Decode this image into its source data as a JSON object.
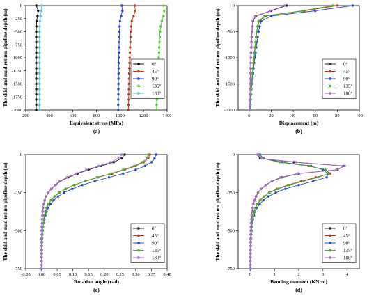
{
  "colors": {
    "0°": "#2b2b2b",
    "45°": "#b5402a",
    "90°": "#2a48c8",
    "135°": "#4fae32",
    "180°": "#a870c8",
    "stress_0°": "#111111",
    "stress_180°": "#59c3e3",
    "stress_135°": "#5cc92d"
  },
  "chart_data": [
    {
      "id": "a",
      "type": "line",
      "caption": "(a)",
      "xlabel": "Equivalent stress (MPa)",
      "ylabel": "The skid and mud return pipeline depth (m)",
      "xlim": [
        200,
        1400
      ],
      "ylim": [
        -2000,
        0
      ],
      "xticks": [
        200,
        400,
        600,
        800,
        1000,
        1200,
        1400
      ],
      "yticks": [
        0,
        -250,
        -500,
        -750,
        -1000,
        -1250,
        -1500,
        -1750,
        -2000
      ],
      "legend": "inside-right",
      "y": [
        0,
        -100,
        -200,
        -300,
        -400,
        -500,
        -600,
        -700,
        -800,
        -900,
        -1000,
        -1100,
        -1200,
        -1300,
        -1400,
        -1500,
        -1600,
        -1700,
        -1800,
        -1900,
        -2000
      ],
      "series": [
        {
          "name": "0°",
          "values": [
            290,
            305,
            300,
            292,
            290,
            289,
            289,
            289,
            289,
            289,
            289,
            289,
            289,
            289,
            289,
            289,
            289,
            289,
            289,
            289,
            289
          ]
        },
        {
          "name": "45°",
          "values": [
            1125,
            1130,
            1115,
            1100,
            1095,
            1092,
            1090,
            1088,
            1086,
            1084,
            1082,
            1080,
            1079,
            1078,
            1077,
            1076,
            1075,
            1074,
            1073,
            1072,
            1071
          ]
        },
        {
          "name": "90°",
          "values": [
            1015,
            1020,
            1010,
            1000,
            997,
            995,
            994,
            993,
            992,
            991,
            990,
            989,
            988,
            988,
            987,
            987,
            986,
            986,
            985,
            985,
            985
          ]
        },
        {
          "name": "135°",
          "values": [
            1370,
            1375,
            1370,
            1355,
            1345,
            1340,
            1337,
            1335,
            1333,
            1331,
            1329,
            1327,
            1325,
            1323,
            1321,
            1319,
            1317,
            1315,
            1313,
            1311,
            1310
          ]
        },
        {
          "name": "180°",
          "values": [
            335,
            330,
            325,
            320,
            318,
            317,
            317,
            317,
            317,
            317,
            317,
            317,
            317,
            317,
            317,
            317,
            317,
            317,
            317,
            317,
            317
          ]
        }
      ]
    },
    {
      "id": "b",
      "type": "line",
      "caption": "(b)",
      "xlabel": "Displacement (m)",
      "ylabel": "The skid and mud return pipeline depth (m)",
      "xlim": [
        -10,
        100
      ],
      "ylim": [
        -2000,
        0
      ],
      "xticks": [
        0,
        20,
        40,
        60,
        80,
        100
      ],
      "yticks": [
        0,
        -500,
        -1000,
        -1500,
        -2000
      ],
      "legend": "inside-right",
      "y": [
        0,
        -100,
        -200,
        -300,
        -400,
        -500,
        -600,
        -700,
        -800,
        -900,
        -1000,
        -1100,
        -1200,
        -1300,
        -1400,
        -1500,
        -1600,
        -1700,
        -1800,
        -1900,
        -2000
      ],
      "series": [
        {
          "name": "0°",
          "values": [
            34,
            20,
            6,
            3.5,
            3,
            2.6,
            2.3,
            2.1,
            1.9,
            1.7,
            1.5,
            1.4,
            1.3,
            1.2,
            1.1,
            1.0,
            0.9,
            0.8,
            0.7,
            0.6,
            0.5
          ]
        },
        {
          "name": "45°",
          "values": [
            80,
            50,
            15,
            9,
            8,
            7,
            6.5,
            6,
            5.5,
            5,
            4.5,
            4,
            3.5,
            3,
            2.5,
            2,
            1.8,
            1.5,
            1.2,
            1.0,
            0.8
          ]
        },
        {
          "name": "90°",
          "values": [
            94,
            60,
            20,
            11,
            9.5,
            8.5,
            7.8,
            7,
            6.4,
            5.8,
            5.2,
            4.6,
            4,
            3.5,
            3,
            2.5,
            2,
            1.7,
            1.4,
            1.1,
            0.9
          ]
        },
        {
          "name": "135°",
          "values": [
            76,
            48,
            14,
            8.5,
            7.5,
            6.8,
            6.2,
            5.7,
            5.2,
            4.7,
            4.2,
            3.7,
            3.3,
            2.9,
            2.5,
            2.1,
            1.8,
            1.5,
            1.2,
            1.0,
            0.8
          ]
        },
        {
          "name": "180°",
          "values": [
            32,
            19,
            5.5,
            3.2,
            2.8,
            2.4,
            2.1,
            1.9,
            1.7,
            1.5,
            1.4,
            1.3,
            1.2,
            1.1,
            1.0,
            0.9,
            0.8,
            0.7,
            0.6,
            0.5,
            0.4
          ]
        }
      ]
    },
    {
      "id": "c",
      "type": "line",
      "caption": "(c)",
      "xlabel": "Rotation angle (rad)",
      "ylabel": "The skid and mud return pipeline depth (m)",
      "xlim": [
        -0.05,
        0.4
      ],
      "ylim": [
        -750,
        0
      ],
      "xticks": [
        -0.05,
        0.0,
        0.05,
        0.1,
        0.15,
        0.2,
        0.25,
        0.3,
        0.35,
        0.4
      ],
      "xtick_labels": [
        "-0.05",
        "0.00",
        "0.05",
        "0.10",
        "0.15",
        "0.20",
        "0.25",
        "0.30",
        "0.35",
        "0.40"
      ],
      "yticks": [
        0,
        -250,
        -500,
        -750
      ],
      "legend": "inside-right",
      "y": [
        0,
        -25,
        -50,
        -75,
        -100,
        -125,
        -150,
        -175,
        -200,
        -225,
        -250,
        -275,
        -300,
        -325,
        -350,
        -375,
        -400,
        -425,
        -450,
        -475,
        -500,
        -525,
        -550,
        -575,
        -600,
        -625,
        -650,
        -675,
        -700,
        -725,
        -750
      ],
      "series": [
        {
          "name": "0°",
          "values": [
            0.265,
            0.255,
            0.23,
            0.19,
            0.15,
            0.115,
            0.085,
            0.06,
            0.045,
            0.032,
            0.022,
            0.015,
            0.01,
            0.007,
            0.005,
            0.004,
            0.003,
            0.002,
            0.002,
            0.001,
            0.001,
            0.001,
            0.0,
            0.0,
            0.0,
            0.0,
            0.0,
            0.0,
            0.0,
            0.0,
            0.0
          ]
        },
        {
          "name": "45°",
          "values": [
            0.345,
            0.34,
            0.325,
            0.3,
            0.265,
            0.225,
            0.18,
            0.14,
            0.105,
            0.078,
            0.057,
            0.042,
            0.031,
            0.023,
            0.017,
            0.013,
            0.01,
            0.008,
            0.006,
            0.005,
            0.004,
            0.003,
            0.002,
            0.002,
            0.001,
            0.001,
            0.001,
            0.0,
            0.0,
            0.0,
            0.0
          ]
        },
        {
          "name": "90°",
          "values": [
            0.365,
            0.36,
            0.35,
            0.33,
            0.3,
            0.26,
            0.215,
            0.17,
            0.13,
            0.098,
            0.072,
            0.053,
            0.039,
            0.029,
            0.021,
            0.016,
            0.012,
            0.009,
            0.007,
            0.005,
            0.004,
            0.003,
            0.002,
            0.002,
            0.001,
            0.001,
            0.001,
            0.0,
            0.0,
            0.0,
            0.0
          ]
        },
        {
          "name": "135°",
          "values": [
            0.34,
            0.335,
            0.32,
            0.295,
            0.26,
            0.22,
            0.177,
            0.138,
            0.103,
            0.077,
            0.056,
            0.041,
            0.03,
            0.022,
            0.016,
            0.012,
            0.009,
            0.007,
            0.006,
            0.005,
            0.004,
            0.003,
            0.002,
            0.002,
            0.001,
            0.001,
            0.001,
            0.0,
            0.0,
            0.0,
            0.0
          ]
        },
        {
          "name": "180°",
          "values": [
            0.255,
            0.245,
            0.22,
            0.182,
            0.143,
            0.11,
            0.081,
            0.058,
            0.043,
            0.031,
            0.021,
            0.015,
            0.01,
            0.007,
            0.005,
            0.004,
            0.003,
            0.002,
            0.002,
            0.001,
            0.001,
            0.001,
            0.0,
            0.0,
            0.0,
            0.0,
            0.0,
            0.0,
            0.0,
            0.0,
            0.0
          ]
        }
      ]
    },
    {
      "id": "d",
      "type": "line",
      "caption": "(d)",
      "xlabel": "Bending moment (KN·m)",
      "ylabel": "The skid and mud return pipeline depth (m)",
      "xlim": [
        -0.5,
        4.5
      ],
      "ylim": [
        -750,
        0
      ],
      "xticks": [
        0,
        1,
        2,
        3,
        4
      ],
      "yticks": [
        0,
        -250,
        -500,
        -750
      ],
      "legend": "inside-right",
      "y": [
        0,
        -25,
        -50,
        -75,
        -100,
        -125,
        -150,
        -175,
        -200,
        -225,
        -250,
        -275,
        -300,
        -325,
        -350,
        -375,
        -400,
        -425,
        -450,
        -475,
        -500,
        -525,
        -550,
        -575,
        -600,
        -625,
        -650,
        -675,
        -700,
        -725,
        -750
      ],
      "series": [
        {
          "name": "0°",
          "values": [
            0.3,
            0.4,
            1.8,
            3.85,
            3.6,
            2.0,
            1.3,
            0.9,
            0.65,
            0.45,
            0.32,
            0.24,
            0.18,
            0.13,
            0.1,
            0.08,
            0.06,
            0.05,
            0.04,
            0.03,
            0.02,
            0.02,
            0.01,
            0.01,
            0.01,
            0.0,
            0.0,
            0.0,
            0.0,
            0.0,
            0.0
          ]
        },
        {
          "name": "45°",
          "values": [
            0.35,
            0.5,
            1.2,
            2.4,
            3.1,
            3.3,
            2.7,
            2.1,
            1.55,
            1.1,
            0.78,
            0.56,
            0.4,
            0.29,
            0.21,
            0.15,
            0.11,
            0.08,
            0.06,
            0.05,
            0.04,
            0.03,
            0.02,
            0.02,
            0.01,
            0.01,
            0.01,
            0.0,
            0.0,
            0.0,
            0.0
          ]
        },
        {
          "name": "90°",
          "values": [
            0.4,
            0.55,
            1.3,
            2.5,
            3.0,
            3.2,
            3.15,
            2.6,
            2.0,
            1.45,
            1.05,
            0.75,
            0.54,
            0.39,
            0.28,
            0.2,
            0.15,
            0.11,
            0.08,
            0.06,
            0.05,
            0.04,
            0.03,
            0.02,
            0.02,
            0.01,
            0.01,
            0.01,
            0.0,
            0.0,
            0.0
          ]
        },
        {
          "name": "135°",
          "values": [
            0.35,
            0.5,
            1.2,
            2.45,
            3.1,
            3.25,
            2.8,
            2.2,
            1.6,
            1.15,
            0.8,
            0.58,
            0.42,
            0.3,
            0.22,
            0.16,
            0.12,
            0.09,
            0.07,
            0.05,
            0.04,
            0.03,
            0.02,
            0.02,
            0.01,
            0.01,
            0.01,
            0.0,
            0.0,
            0.0,
            0.0
          ]
        },
        {
          "name": "180°",
          "values": [
            0.3,
            0.45,
            1.9,
            3.9,
            3.55,
            1.95,
            1.25,
            0.88,
            0.63,
            0.44,
            0.31,
            0.23,
            0.17,
            0.12,
            0.09,
            0.07,
            0.05,
            0.04,
            0.03,
            0.02,
            0.02,
            0.01,
            0.01,
            0.01,
            0.0,
            0.0,
            0.0,
            0.0,
            0.0,
            0.0,
            0.0
          ]
        }
      ]
    }
  ]
}
